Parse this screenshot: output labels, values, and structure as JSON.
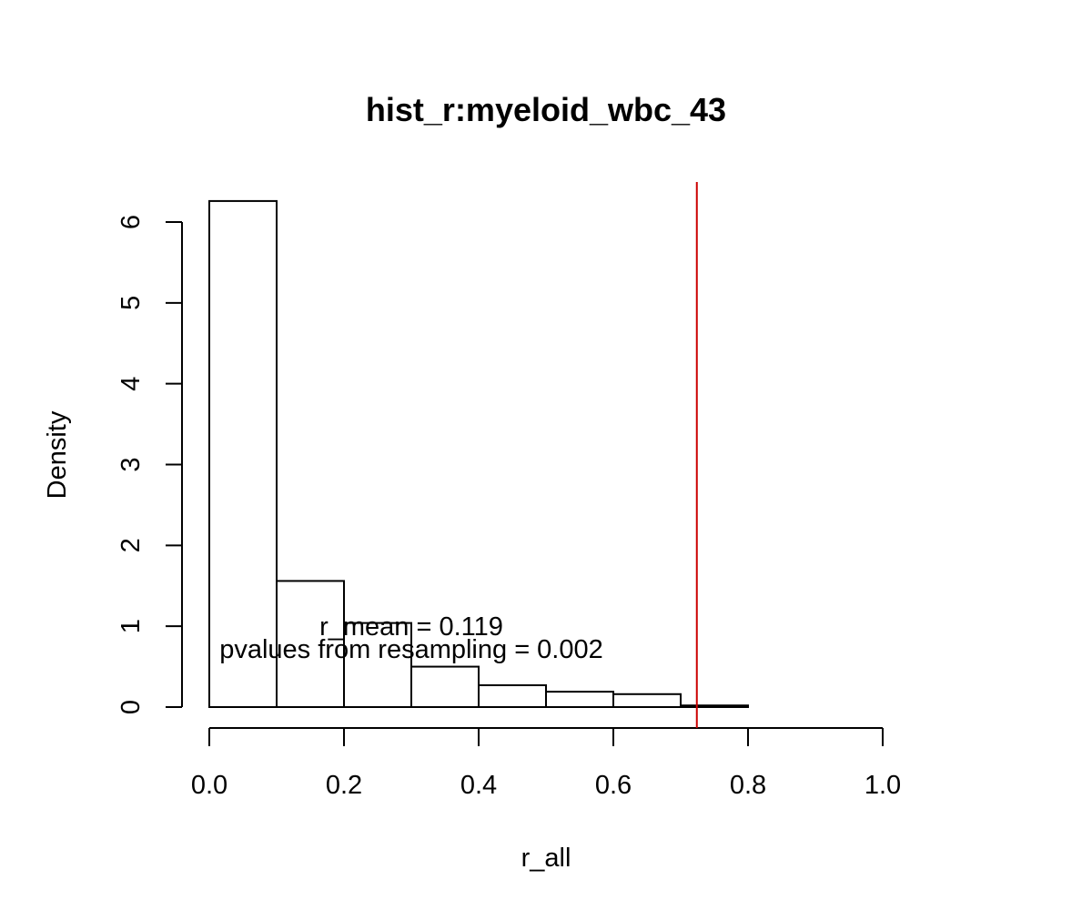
{
  "chart_data": {
    "type": "bar",
    "title": "hist_r:myeloid_wbc_43",
    "xlabel": "r_all",
    "ylabel": "Density",
    "xlim": [
      0,
      1
    ],
    "ylim": [
      0,
      6
    ],
    "bins": [
      {
        "start": 0.0,
        "end": 0.1,
        "density": 6.26
      },
      {
        "start": 0.1,
        "end": 0.2,
        "density": 1.56
      },
      {
        "start": 0.2,
        "end": 0.3,
        "density": 1.04
      },
      {
        "start": 0.3,
        "end": 0.4,
        "density": 0.5
      },
      {
        "start": 0.4,
        "end": 0.5,
        "density": 0.27
      },
      {
        "start": 0.5,
        "end": 0.6,
        "density": 0.19
      },
      {
        "start": 0.6,
        "end": 0.7,
        "density": 0.16
      },
      {
        "start": 0.7,
        "end": 0.8,
        "density": 0.02
      }
    ],
    "x_ticks": [
      "0.0",
      "0.2",
      "0.4",
      "0.6",
      "0.8",
      "1.0"
    ],
    "y_ticks": [
      "0",
      "1",
      "2",
      "3",
      "4",
      "5",
      "6"
    ],
    "reference_line": {
      "x": 0.724,
      "color": "#cc0000"
    },
    "annotations": [
      "r_mean = 0.119",
      "pvalues from resampling = 0.002"
    ],
    "grid": false
  }
}
